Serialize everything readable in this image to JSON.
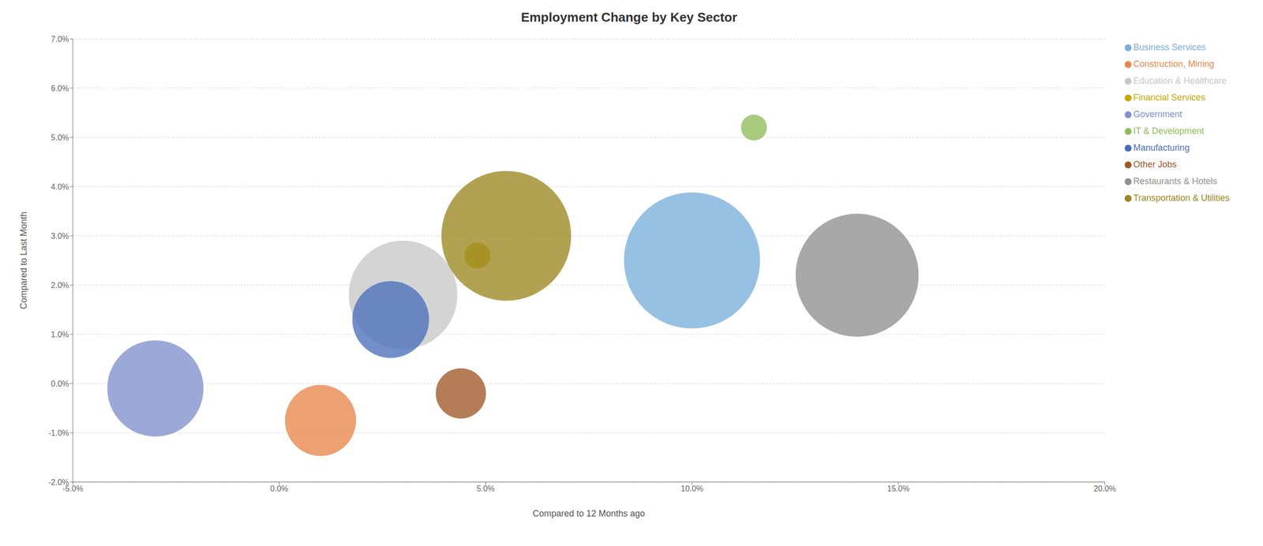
{
  "chart_data": {
    "type": "scatter",
    "title": "Employment Change by Key Sector",
    "xlabel": "Compared to 12 Months ago",
    "ylabel": "Compared to Last Month",
    "xlim": [
      -0.05,
      0.2
    ],
    "ylim": [
      -0.02,
      0.07
    ],
    "xticks": [
      {
        "value": -0.05,
        "label": "-5.0%"
      },
      {
        "value": 0.0,
        "label": "0.0%"
      },
      {
        "value": 0.05,
        "label": "5.0%"
      },
      {
        "value": 0.1,
        "label": "10.0%"
      },
      {
        "value": 0.15,
        "label": "15.0%"
      },
      {
        "value": 0.2,
        "label": "20.0%"
      }
    ],
    "yticks": [
      {
        "value": -0.02,
        "label": "-2.0%"
      },
      {
        "value": -0.01,
        "label": "-1.0%"
      },
      {
        "value": 0.0,
        "label": "0.0%"
      },
      {
        "value": 0.01,
        "label": "1.0%"
      },
      {
        "value": 0.02,
        "label": "2.0%"
      },
      {
        "value": 0.03,
        "label": "3.0%"
      },
      {
        "value": 0.04,
        "label": "4.0%"
      },
      {
        "value": 0.05,
        "label": "5.0%"
      },
      {
        "value": 0.06,
        "label": "6.0%"
      },
      {
        "value": 0.07,
        "label": "7.0%"
      }
    ],
    "grid": "y",
    "legend": "upper right",
    "series": [
      {
        "name": "Business Services",
        "color": "#7aafdb",
        "x": [
          0.1
        ],
        "values": [
          0.025
        ],
        "size": [
          2200
        ]
      },
      {
        "name": "Construction, Mining",
        "color": "#e8874a",
        "x": [
          0.01
        ],
        "values": [
          -0.0075
        ],
        "size": [
          600
        ]
      },
      {
        "name": "Education & Healthcare",
        "color": "#c8c8c8",
        "x": [
          0.03
        ],
        "values": [
          0.018
        ],
        "size": [
          1400
        ]
      },
      {
        "name": "Financial Services",
        "color": "#c8a800",
        "x": [
          0.048
        ],
        "values": [
          0.026
        ],
        "size": [
          80
        ]
      },
      {
        "name": "Government",
        "color": "#8090cc",
        "x": [
          -0.03
        ],
        "values": [
          -0.001
        ],
        "size": [
          1100
        ]
      },
      {
        "name": "IT & Development",
        "color": "#8fbc5a",
        "x": [
          0.115
        ],
        "values": [
          0.052
        ],
        "size": [
          80
        ]
      },
      {
        "name": "Manufacturing",
        "color": "#4a6fba",
        "x": [
          0.027
        ],
        "values": [
          0.013
        ],
        "size": [
          700
        ]
      },
      {
        "name": "Other Jobs",
        "color": "#a05828",
        "x": [
          0.044
        ],
        "values": [
          -0.002
        ],
        "size": [
          300
        ]
      },
      {
        "name": "Restaurants & Hotels",
        "color": "#909090",
        "x": [
          0.14
        ],
        "values": [
          0.022
        ],
        "size": [
          1800
        ]
      },
      {
        "name": "Transportation & Utilities",
        "color": "#9a8820",
        "x": [
          0.055
        ],
        "values": [
          0.03
        ],
        "size": [
          2000
        ]
      }
    ]
  }
}
